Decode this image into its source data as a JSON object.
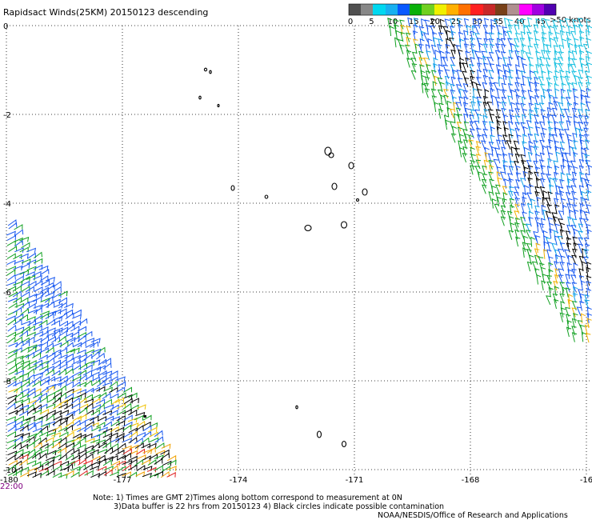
{
  "header": {
    "title": "Rapidsact Winds(25KM) 20150123 descending",
    "scale_units": ">50 knots"
  },
  "color_scale": {
    "labels": [
      "0",
      "5",
      "10",
      "15",
      "20",
      "25",
      "30",
      "35",
      "40",
      "45"
    ],
    "colors": [
      "#505050",
      "#888888",
      "#00d8f0",
      "#18b0f0",
      "#0858ff",
      "#08b008",
      "#70d020",
      "#f0f000",
      "#ffb000",
      "#ff7000",
      "#ff2020",
      "#c82828",
      "#784018",
      "#b09090",
      "#ff00ff",
      "#a000e0",
      "#5000b0"
    ]
  },
  "axes": {
    "lat_labels": [
      "0",
      "-2",
      "-4",
      "-6",
      "-8",
      "-10"
    ],
    "lon_labels": [
      "-180",
      "-177",
      "-174",
      "-171",
      "-168",
      "-16"
    ],
    "time_label": "22:00"
  },
  "notes": {
    "line1": "Note: 1) Times are GMT 2)Times along bottom correspond to measurement at 0N",
    "line2": "3)Data buffer is 22 hrs from 20150123 4) Black circles indicate possible contamination",
    "line3": "NOAA/NESDIS/Office of Research and Applications"
  },
  "islands": [
    "atoll-1",
    "atoll-2",
    "atoll-3",
    "atoll-4",
    "atoll-5",
    "atoll-6",
    "atoll-7",
    "atoll-8",
    "atoll-9",
    "atoll-10",
    "atoll-11",
    "atoll-12",
    "atoll-13",
    "atoll-14",
    "atoll-15",
    "atoll-16",
    "atoll-17"
  ]
}
